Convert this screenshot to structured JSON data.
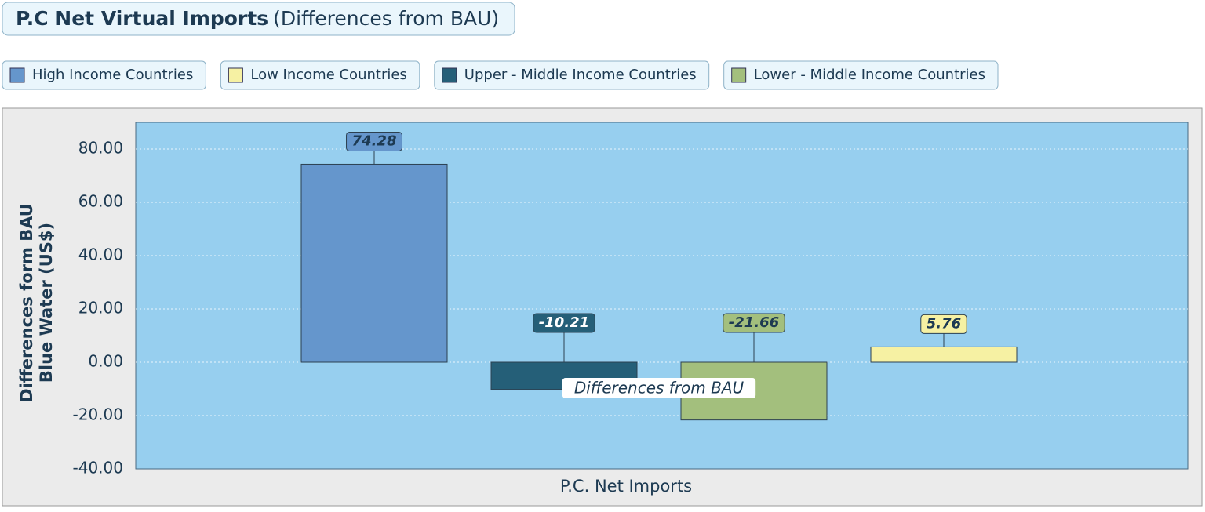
{
  "chart_data": {
    "type": "bar",
    "title": "P.C Net Virtual Imports",
    "subtitle": "(Differences from BAU)",
    "x_label": "P.C. Net Imports",
    "y_label": [
      "Differences form BAU",
      "Blue Water (US$)"
    ],
    "annotation": "Differences from BAU",
    "series": [
      {
        "name": "High Income Countries",
        "color": "#6596cc",
        "values": [
          74.28
        ]
      },
      {
        "name": "Upper - Middle Income Countries",
        "color": "#255f78",
        "values": [
          -10.21
        ]
      },
      {
        "name": "Lower - Middle Income Countries",
        "color": "#a3bf7d",
        "values": [
          -21.66
        ]
      },
      {
        "name": "Low Income Countries",
        "color": "#f6f1a3",
        "values": [
          5.76
        ]
      }
    ],
    "legend_order": [
      0,
      3,
      1,
      2
    ],
    "ylim": [
      -40,
      90
    ],
    "yticks": [
      {
        "value": -40,
        "label": "-40.00"
      },
      {
        "value": -20,
        "label": "-20.00"
      },
      {
        "value": 0,
        "label": "0.00"
      },
      {
        "value": 20,
        "label": "20.00"
      },
      {
        "value": 40,
        "label": "40.00"
      },
      {
        "value": 60,
        "label": "60.00"
      },
      {
        "value": 80,
        "label": "80.00"
      }
    ],
    "grid": true,
    "background": "#97cfef"
  }
}
